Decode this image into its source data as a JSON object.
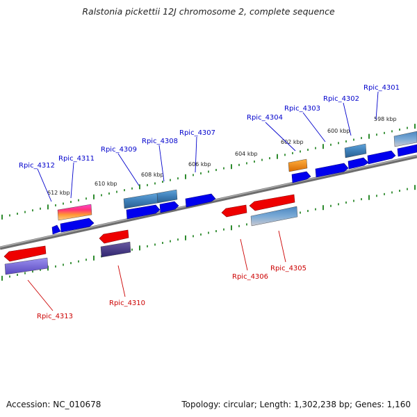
{
  "title": "Ralstonia pickettii 12J chromosome 2, complete sequence",
  "footer": {
    "accession": "Accession: NC_010678",
    "topology": "Topology: circular; Length: 1,302,238 bp; Genes: 1,160"
  },
  "colors": {
    "forward_label": "#0000cc",
    "reverse_label": "#cc0000",
    "backbone": "#8a8a8a",
    "tick": "#2e8b2e",
    "forward_cds": "#0000ee",
    "reverse_cds": "#ee0000"
  },
  "ruler": [
    "598 kbp",
    "600 kbp",
    "602 kbp",
    "604 kbp",
    "606 kbp",
    "608 kbp",
    "610 kbp",
    "612 kbp"
  ],
  "genes": [
    {
      "id": "Rpic_4301",
      "strand": "forward"
    },
    {
      "id": "Rpic_4302",
      "strand": "forward"
    },
    {
      "id": "Rpic_4303",
      "strand": "forward"
    },
    {
      "id": "Rpic_4304",
      "strand": "forward"
    },
    {
      "id": "Rpic_4305",
      "strand": "reverse"
    },
    {
      "id": "Rpic_4306",
      "strand": "reverse"
    },
    {
      "id": "Rpic_4307",
      "strand": "forward"
    },
    {
      "id": "Rpic_4308",
      "strand": "forward"
    },
    {
      "id": "Rpic_4309",
      "strand": "forward"
    },
    {
      "id": "Rpic_4310",
      "strand": "reverse"
    },
    {
      "id": "Rpic_4311",
      "strand": "forward"
    },
    {
      "id": "Rpic_4312",
      "strand": "forward"
    },
    {
      "id": "Rpic_4313",
      "strand": "reverse"
    }
  ]
}
